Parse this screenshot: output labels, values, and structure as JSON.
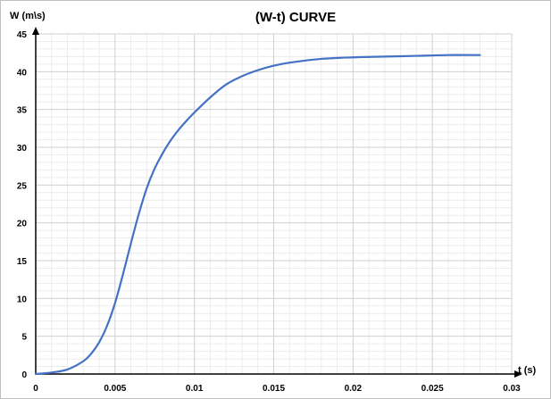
{
  "chart_data": {
    "type": "line",
    "title": "(W-t) CURVE",
    "xlabel": "t (s)",
    "ylabel": "W (m\\s)",
    "xlim": [
      0,
      0.03
    ],
    "ylim": [
      0,
      45
    ],
    "x_ticks": [
      "0",
      "0.005",
      "0.01",
      "0.015",
      "0.02",
      "0.025",
      "0.03"
    ],
    "y_ticks": [
      "0",
      "5",
      "10",
      "15",
      "20",
      "25",
      "30",
      "35",
      "40",
      "45"
    ],
    "grid": true,
    "minor_grid": true,
    "legend": "none",
    "line_color": "#4472c4",
    "series": [
      {
        "x": [
          0,
          0.001,
          0.002,
          0.003,
          0.0035,
          0.004,
          0.0045,
          0.005,
          0.0055,
          0.006,
          0.0065,
          0.007,
          0.0075,
          0.008,
          0.0085,
          0.009,
          0.0095,
          0.01,
          0.011,
          0.012,
          0.013,
          0.014,
          0.015,
          0.016,
          0.018,
          0.02,
          0.022,
          0.024,
          0.026,
          0.028
        ],
        "y": [
          0,
          0.2,
          0.6,
          1.7,
          2.7,
          4.2,
          6.4,
          9.4,
          13.2,
          17.3,
          21.2,
          24.6,
          27.2,
          29.2,
          30.9,
          32.3,
          33.5,
          34.6,
          36.6,
          38.3,
          39.4,
          40.2,
          40.8,
          41.2,
          41.7,
          41.9,
          42.0,
          42.1,
          42.2,
          42.2
        ]
      }
    ]
  }
}
